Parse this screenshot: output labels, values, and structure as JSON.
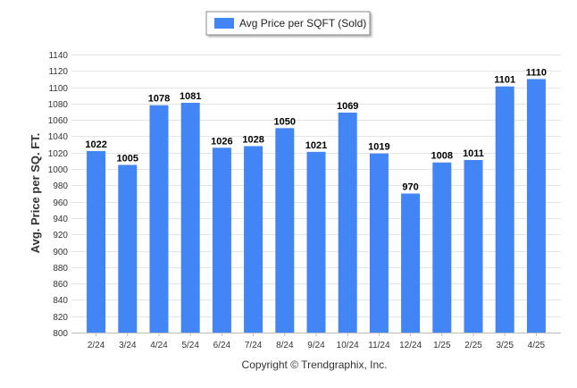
{
  "chart_data": {
    "type": "bar",
    "categories": [
      "2/24",
      "3/24",
      "4/24",
      "5/24",
      "6/24",
      "7/24",
      "8/24",
      "9/24",
      "10/24",
      "11/24",
      "12/24",
      "1/25",
      "2/25",
      "3/25",
      "4/25"
    ],
    "series": [
      {
        "name": "Avg Price per SQFT (Sold)",
        "values": [
          1022,
          1005,
          1078,
          1081,
          1026,
          1028,
          1050,
          1021,
          1069,
          1019,
          970,
          1008,
          1011,
          1101,
          1110
        ],
        "color": "#4285f4"
      }
    ],
    "ylabel": "Avg. Price per SQ. FT.",
    "ylim": [
      800,
      1140
    ],
    "yticks": [
      800,
      820,
      840,
      860,
      880,
      900,
      920,
      940,
      960,
      980,
      1000,
      1020,
      1040,
      1060,
      1080,
      1100,
      1120,
      1140
    ],
    "grid": true,
    "legend_position": "top-center",
    "data_labels": true
  },
  "copyright": "Copyright © Trendgraphix, Inc."
}
